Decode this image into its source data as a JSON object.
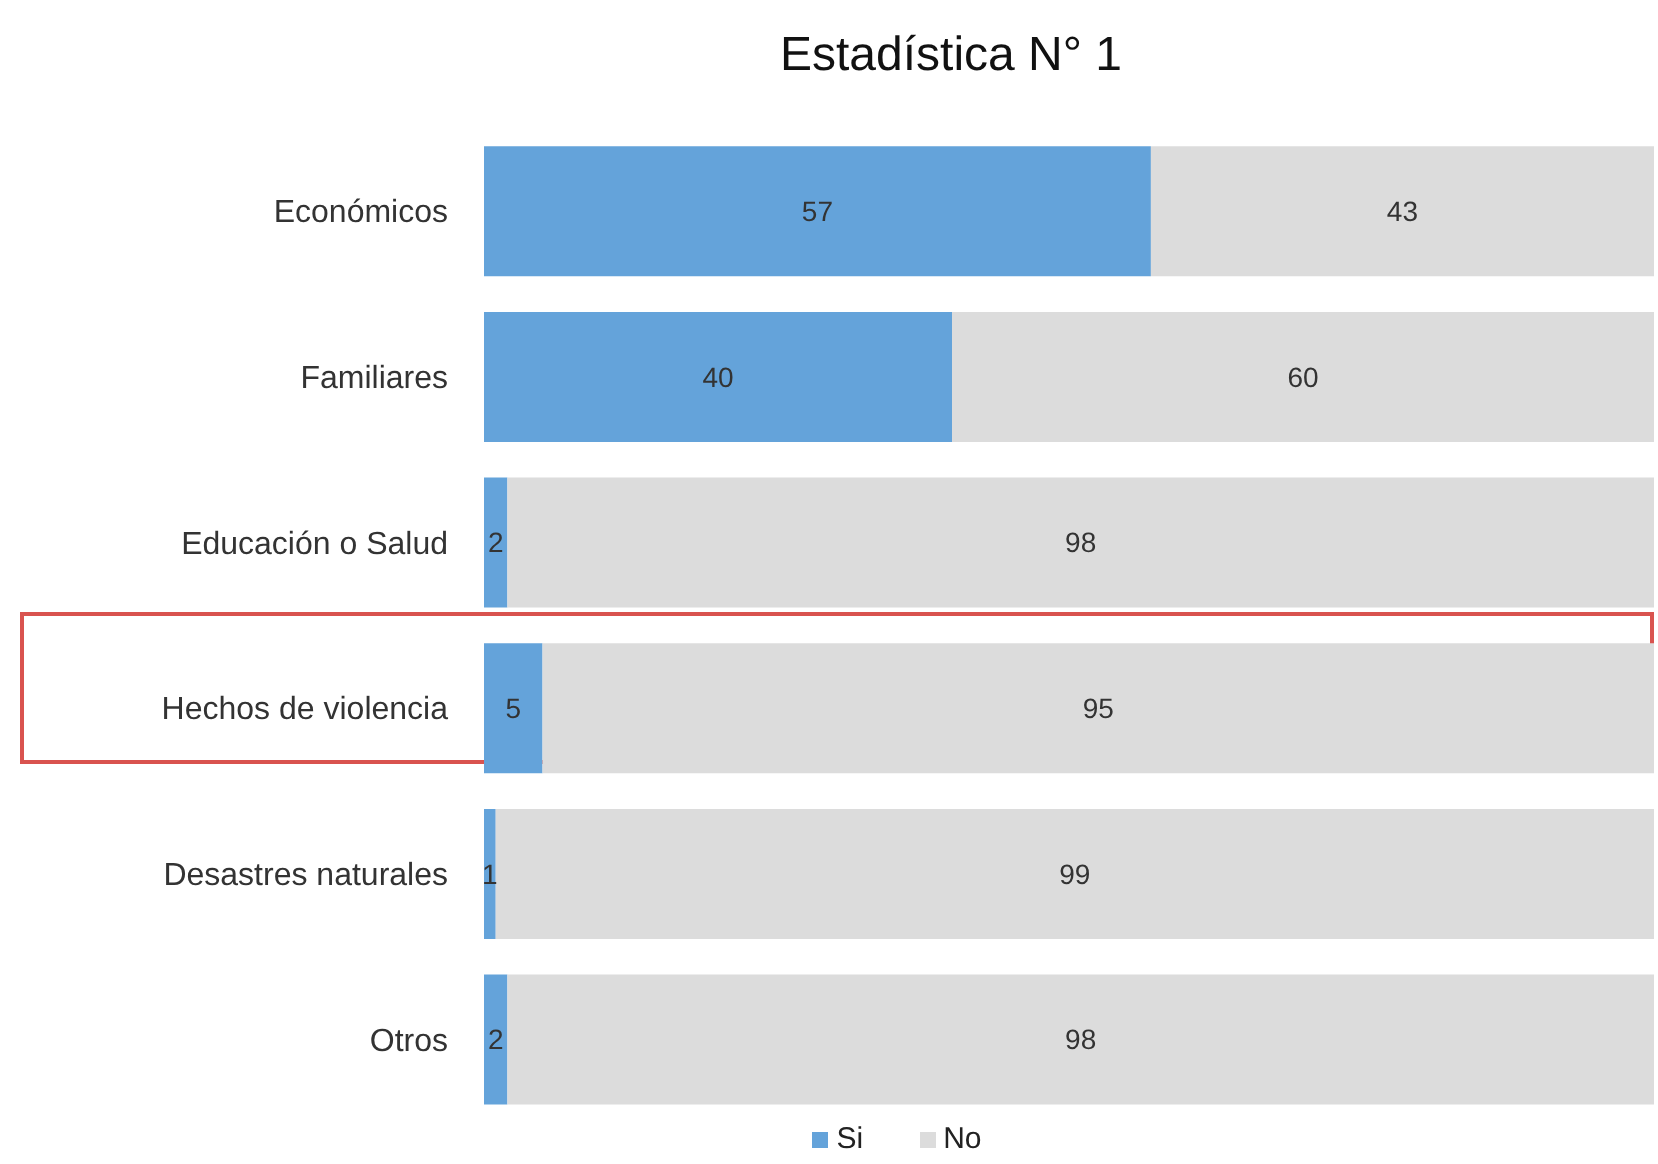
{
  "chart_data": {
    "type": "bar",
    "title": "Estadística N° 1",
    "orientation": "horizontal",
    "stacked": true,
    "data_labels": true,
    "legend": "bottom",
    "categories": [
      "Económicos",
      "Familiares",
      "Educación o Salud",
      "Hechos de violencia",
      "Desastres naturales",
      "Otros"
    ],
    "series": [
      {
        "name": "Si",
        "color": "#64a3da",
        "values": [
          57,
          40,
          2,
          5,
          1,
          2
        ]
      },
      {
        "name": "No",
        "color": "#dcdcdc",
        "values": [
          43,
          60,
          98,
          95,
          99,
          98
        ]
      }
    ]
  }
}
